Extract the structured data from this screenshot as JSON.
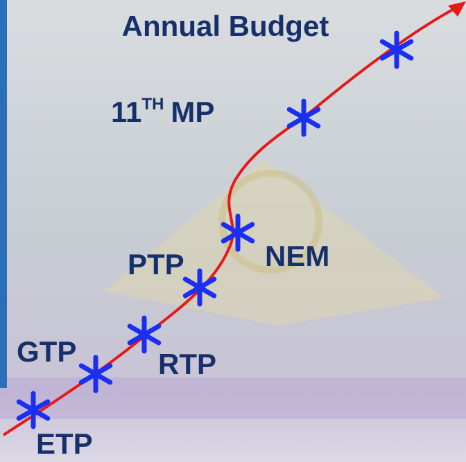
{
  "title": "Annual Budget",
  "nodes": [
    {
      "label": "ETP"
    },
    {
      "label": "GTP"
    },
    {
      "label": "RTP"
    },
    {
      "label": "PTP"
    },
    {
      "label": "NEM"
    },
    {
      "number": "11",
      "superscript": "TH",
      "suffix": "MP"
    }
  ]
}
